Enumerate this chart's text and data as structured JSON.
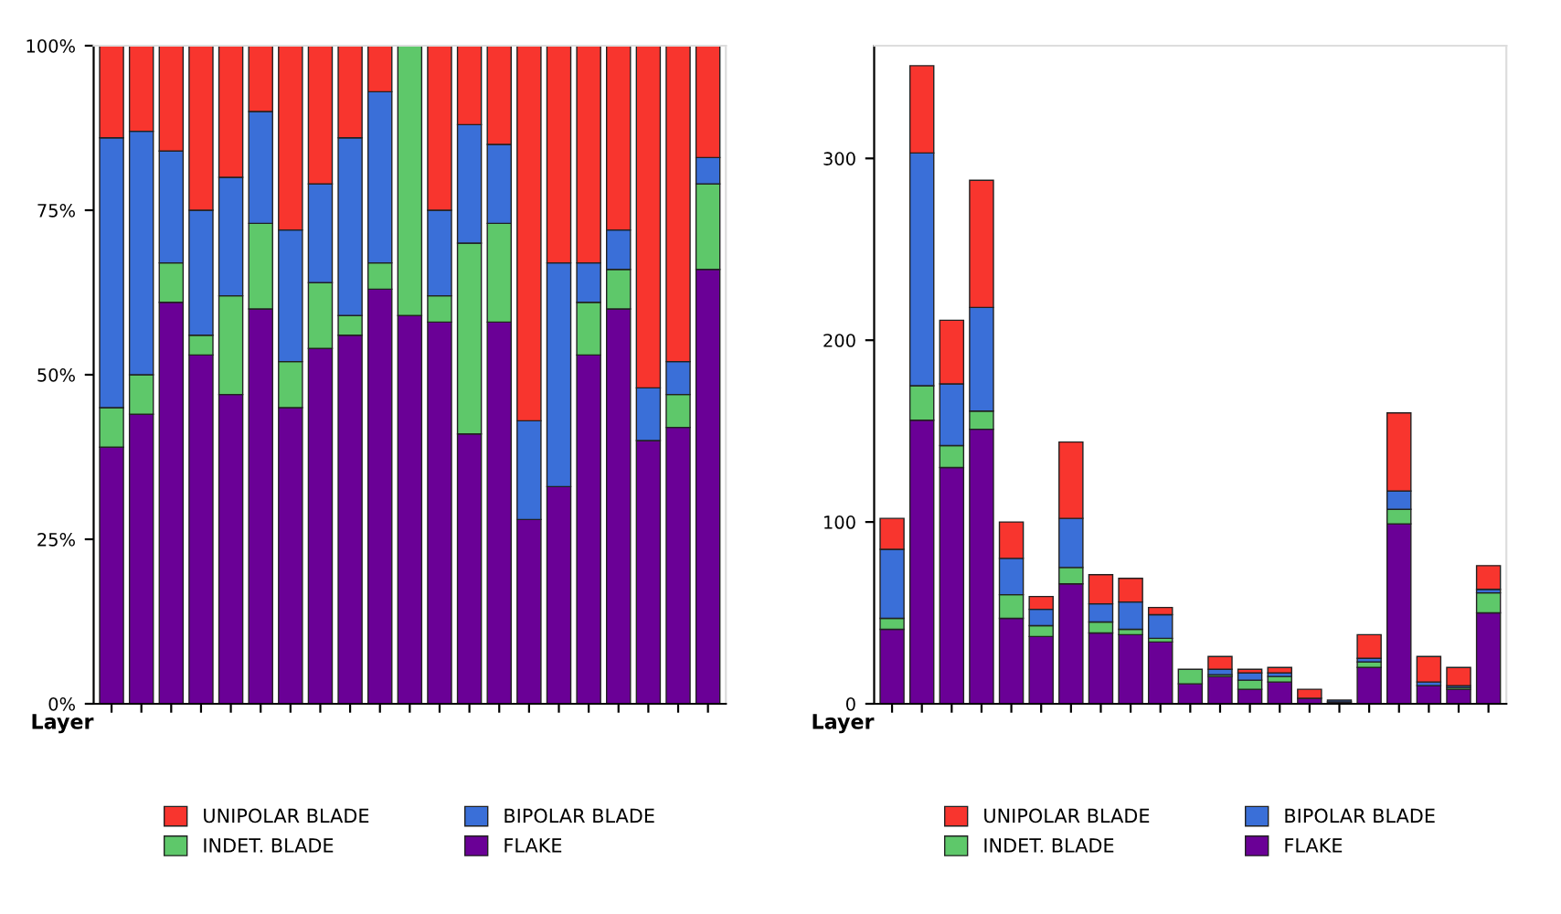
{
  "chart_data": [
    {
      "type": "bar",
      "stacked": true,
      "xlabel": "Layer",
      "categories": [
        null,
        null,
        null,
        null,
        null,
        null,
        null,
        null,
        null,
        null,
        null,
        null,
        null,
        null,
        null,
        null,
        null,
        null,
        null,
        null,
        null
      ],
      "ylim": [
        0,
        100
      ],
      "yticks": [
        {
          "value": 0,
          "label": "0%"
        },
        {
          "value": 25,
          "label": "25%"
        },
        {
          "value": 50,
          "label": "50%"
        },
        {
          "value": 75,
          "label": "75%"
        },
        {
          "value": 100,
          "label": "100%"
        }
      ],
      "grid": false,
      "legend": "bottom",
      "series": [
        {
          "name": "FLAKE",
          "color": "#6a0096",
          "values": [
            39,
            44,
            61,
            53,
            47,
            60,
            45,
            54,
            56,
            63,
            59,
            58,
            41,
            58,
            28,
            33,
            53,
            60,
            40,
            42,
            66
          ]
        },
        {
          "name": "INDET. BLADE",
          "color": "#5ec86a",
          "values": [
            6,
            6,
            6,
            3,
            15,
            13,
            7,
            10,
            3,
            4,
            41,
            4,
            29,
            15,
            0,
            0,
            8,
            6,
            0,
            5,
            13
          ]
        },
        {
          "name": "BIPOLAR BLADE",
          "color": "#3a6fd8",
          "values": [
            41,
            37,
            17,
            19,
            18,
            17,
            20,
            15,
            27,
            26,
            0,
            13,
            18,
            12,
            15,
            34,
            6,
            6,
            8,
            5,
            4
          ]
        },
        {
          "name": "UNIPOLAR BLADE",
          "color": "#f8352e",
          "values": [
            14,
            13,
            16,
            25,
            20,
            10,
            28,
            21,
            14,
            7,
            0,
            25,
            12,
            15,
            57,
            33,
            33,
            28,
            52,
            48,
            17
          ]
        }
      ]
    },
    {
      "type": "bar",
      "stacked": true,
      "xlabel": "Layer",
      "categories": [
        null,
        null,
        null,
        null,
        null,
        null,
        null,
        null,
        null,
        null,
        null,
        null,
        null,
        null,
        null,
        null,
        null,
        null,
        null,
        null,
        null
      ],
      "ylim": [
        0,
        362
      ],
      "yticks": [
        0,
        100,
        200,
        300
      ],
      "grid": false,
      "legend": "bottom",
      "series": [
        {
          "name": "FLAKE",
          "color": "#6a0096",
          "values": [
            41,
            156,
            130,
            151,
            47,
            37,
            66,
            39,
            38,
            34,
            11,
            15,
            8,
            12,
            3,
            1,
            20,
            99,
            10,
            8,
            50
          ]
        },
        {
          "name": "INDET. BLADE",
          "color": "#5ec86a",
          "values": [
            6,
            19,
            12,
            10,
            13,
            6,
            9,
            6,
            3,
            2,
            8,
            1,
            5,
            3,
            0,
            0,
            3,
            8,
            0,
            1,
            11
          ]
        },
        {
          "name": "BIPOLAR BLADE",
          "color": "#3a6fd8",
          "values": [
            38,
            128,
            34,
            57,
            20,
            9,
            27,
            10,
            15,
            13,
            0,
            3,
            4,
            2,
            null,
            1,
            2,
            10,
            2,
            1,
            2
          ]
        },
        {
          "name": "UNIPOLAR BLADE",
          "color": "#f8352e",
          "values": [
            17,
            48,
            35,
            70,
            20,
            7,
            42,
            16,
            13,
            4,
            0,
            7,
            2,
            3,
            5,
            null,
            13,
            43,
            14,
            10,
            13
          ]
        }
      ]
    }
  ]
}
